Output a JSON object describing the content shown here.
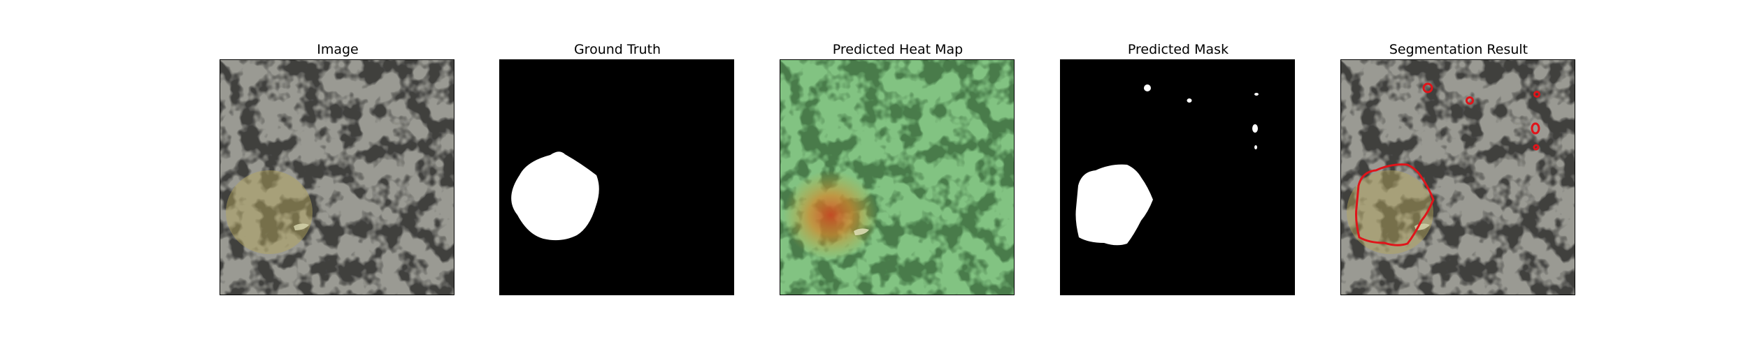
{
  "figure": {
    "panels": [
      {
        "title": "Image"
      },
      {
        "title": "Ground Truth"
      },
      {
        "title": "Predicted Heat Map"
      },
      {
        "title": "Predicted Mask"
      },
      {
        "title": "Segmentation Result"
      }
    ]
  },
  "colors": {
    "texture_light": "#9a9a93",
    "texture_dark": "#3f3f3d",
    "mask_fg": "#ffffff",
    "mask_bg": "#000000",
    "heat_overlay": "#7ed37e",
    "heat_hot": "#d8742a",
    "contour": "#e0141a"
  }
}
